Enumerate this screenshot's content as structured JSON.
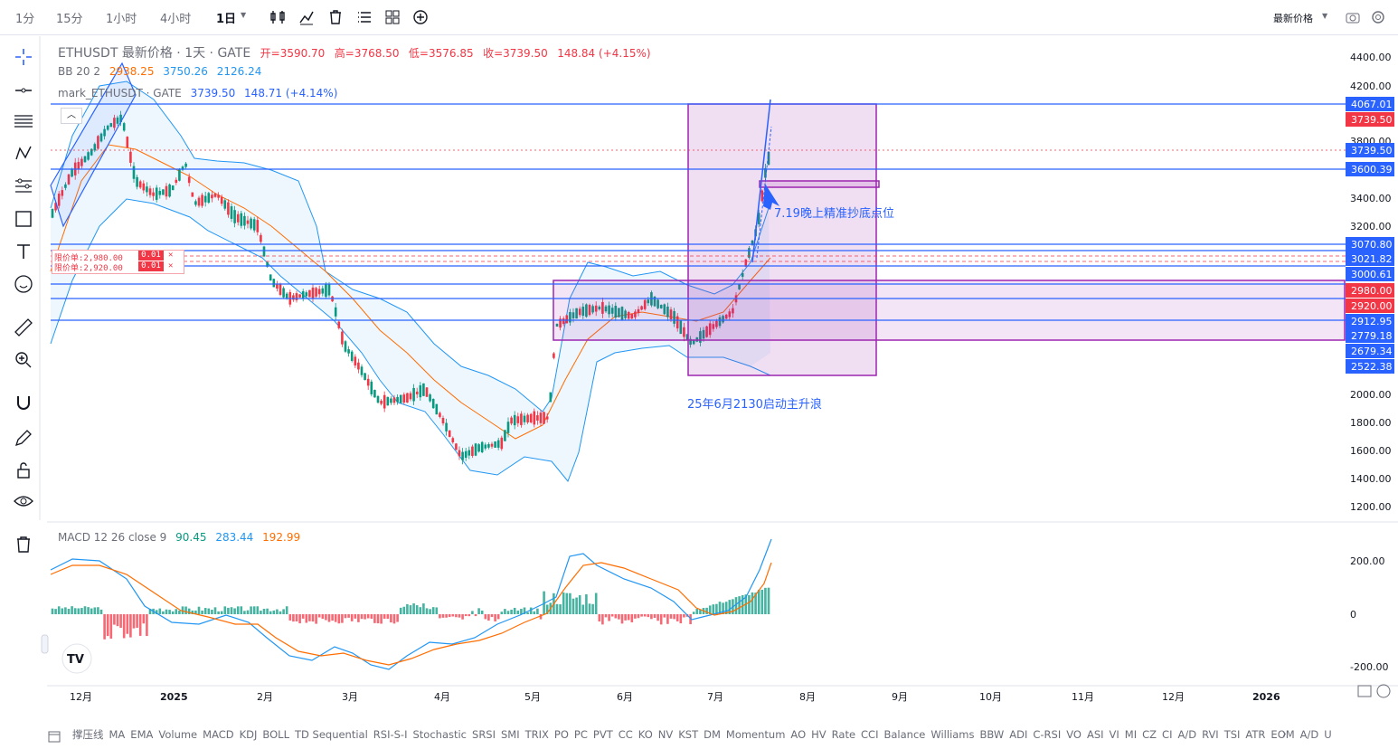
{
  "toolbar": {
    "timeframes": [
      "1分",
      "15分",
      "1小时",
      "4小时",
      "1日"
    ],
    "active_timeframe": "1日",
    "price_mode": "最新价格"
  },
  "legend": {
    "symbol": "ETHUSDT 最新价格 · 1天 · GATE",
    "open_label": "开=3590.70",
    "high_label": "高=3768.50",
    "low_label": "低=3576.85",
    "close_label": "收=3739.50",
    "change": "148.84 (+4.15%)",
    "bb_name": "BB 20 2",
    "bb_mid": "2938.25",
    "bb_up": "3750.26",
    "bb_low": "2126.24",
    "mark_name": "mark_ETHUSDT · GATE",
    "mark_val": "3739.50",
    "mark_change": "148.71 (+4.14%)",
    "macd_name": "MACD 12 26 close 9",
    "macd_v1": "90.45",
    "macd_v2": "283.44",
    "macd_v3": "192.99"
  },
  "orders": {
    "order1": "限价单:2,980.00",
    "order1_qty": "0.01",
    "order2": "限价单:2,920.00",
    "order2_qty": "0.01"
  },
  "annotations": {
    "bottom_note": "7.19晚上精准抄底点位",
    "launch_note": "25年6月2130启动主升浪"
  },
  "price_axis": [
    "4400.00",
    "4200.00",
    "3800.00",
    "3400.00",
    "3200.00",
    "2000.00",
    "1800.00",
    "1600.00",
    "1400.00",
    "1200.00"
  ],
  "price_tags": [
    {
      "label": "4067.01",
      "color": "#2962ff"
    },
    {
      "label": "3739.50",
      "color": "#f23645"
    },
    {
      "label": "3739.50",
      "color": "#2962ff"
    },
    {
      "label": "3600.39",
      "color": "#2962ff"
    },
    {
      "label": "3070.80",
      "color": "#2962ff"
    },
    {
      "label": "3021.82",
      "color": "#2962ff"
    },
    {
      "label": "3000.61",
      "color": "#2962ff"
    },
    {
      "label": "2980.00",
      "color": "#f23645"
    },
    {
      "label": "2920.00",
      "color": "#f23645"
    },
    {
      "label": "2912.95",
      "color": "#2962ff"
    },
    {
      "label": "2779.18",
      "color": "#2962ff"
    },
    {
      "label": "2679.34",
      "color": "#2962ff"
    },
    {
      "label": "2522.38",
      "color": "#2962ff"
    }
  ],
  "macd_axis": [
    "200.00",
    "0",
    "-200.00"
  ],
  "time_axis": [
    "12月",
    "2025",
    "2月",
    "3月",
    "4月",
    "5月",
    "6月",
    "7月",
    "8月",
    "9月",
    "10月",
    "11月",
    "12月",
    "2026"
  ],
  "indicators": [
    "撑压线",
    "MA",
    "EMA",
    "Volume",
    "MACD",
    "KDJ",
    "BOLL",
    "TD Sequential",
    "RSI-S-I",
    "Stochastic",
    "SRSI",
    "SMI",
    "TRIX",
    "PO",
    "PC",
    "PVT",
    "CC",
    "KO",
    "NV",
    "KST",
    "DM",
    "Momentum",
    "AO",
    "HV",
    "Rate",
    "CCI",
    "Balance",
    "Williams",
    "BBW",
    "ADI",
    "C-RSI",
    "VO",
    "ASI",
    "VI",
    "MI",
    "CZ",
    "CI",
    "A/D",
    "RVI",
    "TSI",
    "ATR",
    "EOM",
    "A/D",
    "U"
  ],
  "colors": {
    "up": "#089981",
    "down": "#f23645",
    "blue": "#2962ff",
    "bb": "#2196f3",
    "ema": "#ff6d00",
    "purple": "#9c27b0"
  }
}
